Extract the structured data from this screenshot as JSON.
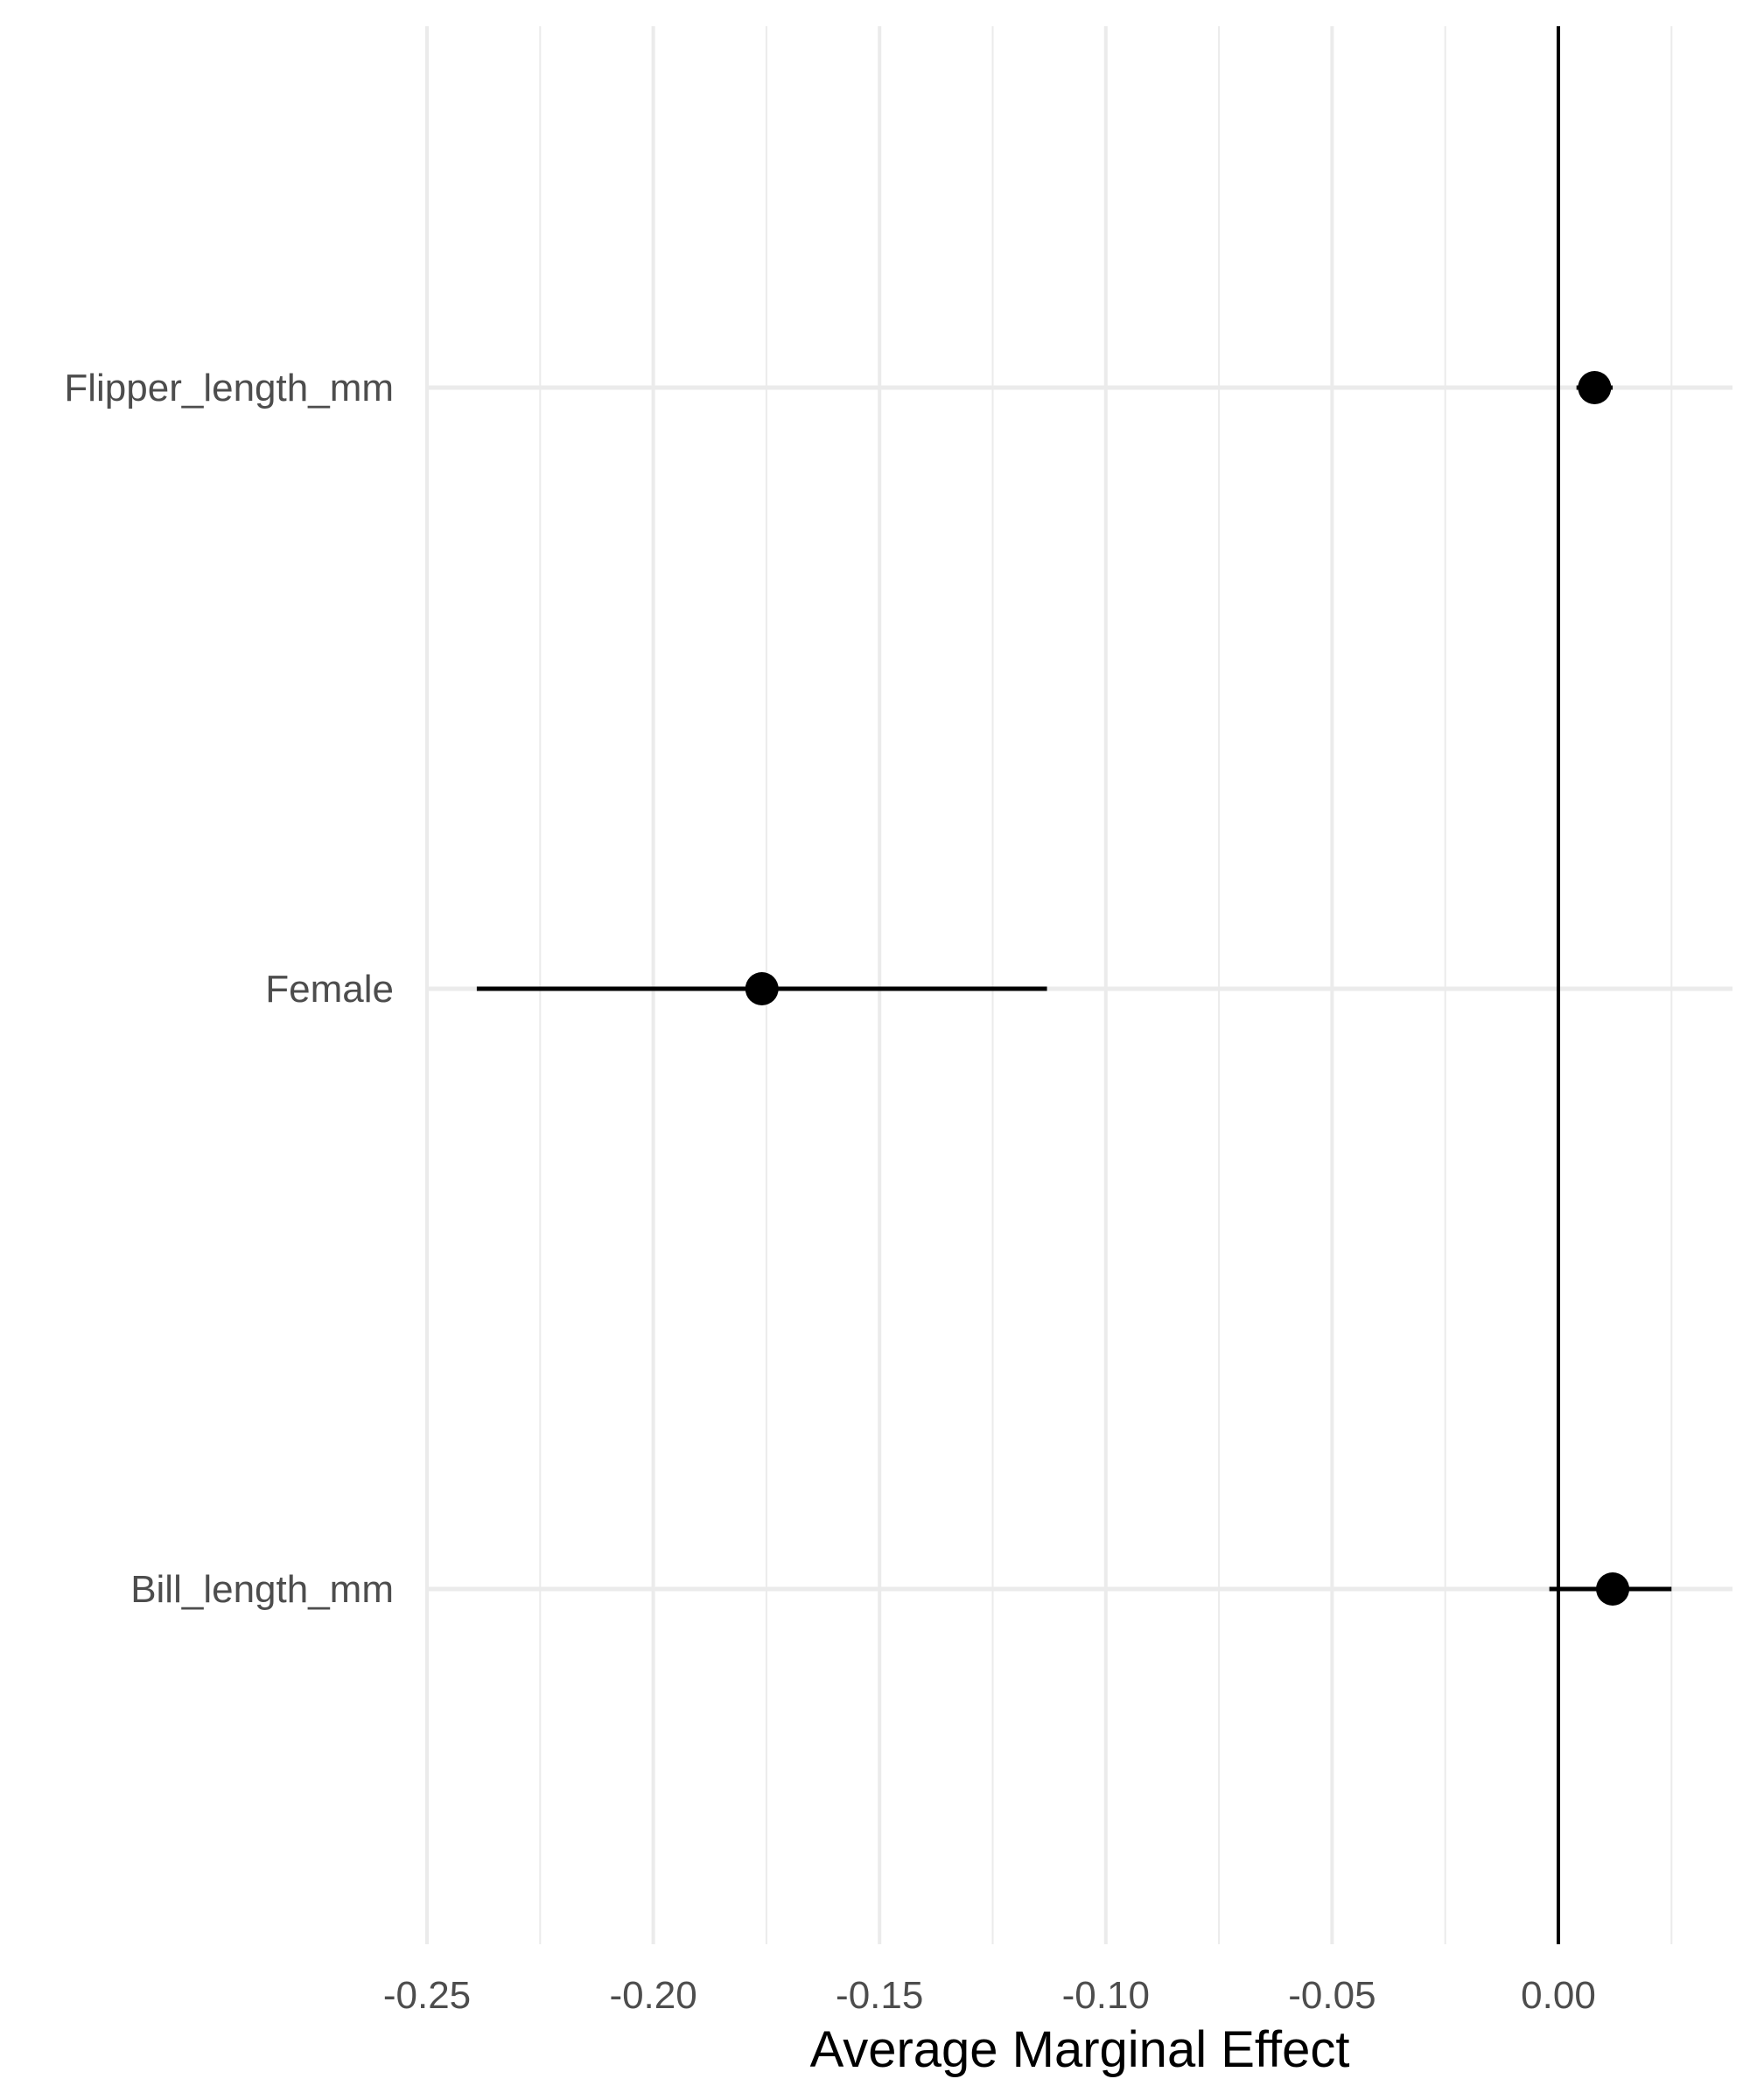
{
  "chart_data": {
    "type": "scatter",
    "title": "",
    "xlabel": "Average Marginal Effect",
    "ylabel": "",
    "xlim": [
      -0.25,
      0.038
    ],
    "x_ticks": [
      -0.25,
      -0.2,
      -0.15,
      -0.1,
      -0.05,
      0.0
    ],
    "x_tick_labels": [
      "-0.25",
      "-0.20",
      "-0.15",
      "-0.10",
      "-0.05",
      "0.00"
    ],
    "x_minor_ticks": [
      -0.225,
      -0.175,
      -0.125,
      -0.075,
      -0.025,
      0.025
    ],
    "categories": [
      "Flipper_length_mm",
      "Female",
      "Bill_length_mm"
    ],
    "points": [
      {
        "term": "Flipper_length_mm",
        "estimate": 0.008,
        "conf_low": 0.004,
        "conf_high": 0.012
      },
      {
        "term": "Female",
        "estimate": -0.176,
        "conf_low": -0.239,
        "conf_high": -0.113
      },
      {
        "term": "Bill_length_mm",
        "estimate": 0.012,
        "conf_low": -0.002,
        "conf_high": 0.025
      }
    ],
    "reference_line_x": 0,
    "grid": true,
    "legend": "none",
    "colors": {
      "point": "#000000",
      "grid": "#ebebeb",
      "tick_text": "#4d4d4d",
      "reference": "#000000"
    }
  }
}
